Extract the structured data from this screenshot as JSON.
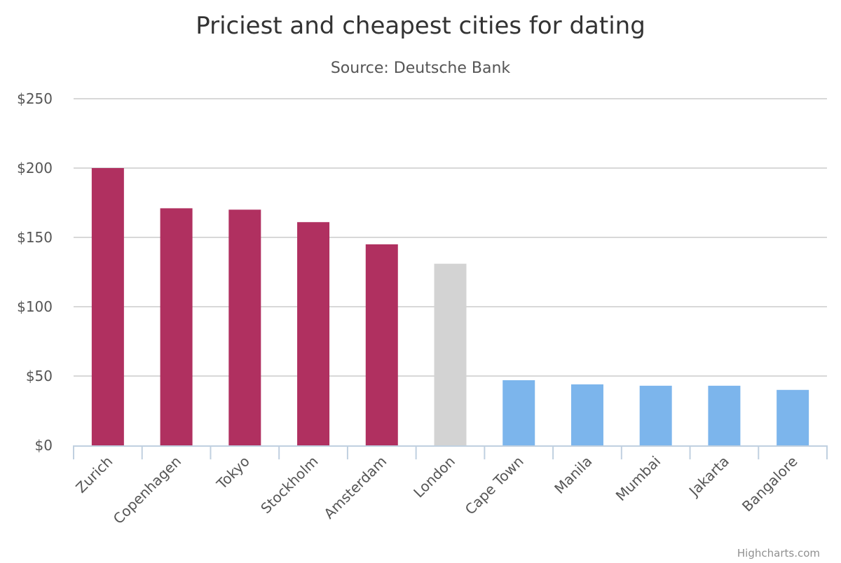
{
  "chart_data": {
    "type": "bar",
    "title": "Priciest and cheapest cities for dating",
    "subtitle": "Source: Deutsche Bank",
    "xlabel": "",
    "ylabel": "",
    "categories": [
      "Zurich",
      "Copenhagen",
      "Tokyo",
      "Stockholm",
      "Amsterdam",
      "London",
      "Cape Town",
      "Manila",
      "Mumbai",
      "Jakarta",
      "Bangalore"
    ],
    "values": [
      200,
      171,
      170,
      161,
      145,
      131,
      47,
      44,
      43,
      43,
      40
    ],
    "colors": [
      "#b03060",
      "#b03060",
      "#b03060",
      "#b03060",
      "#b03060",
      "#d3d3d3",
      "#7cb5ec",
      "#7cb5ec",
      "#7cb5ec",
      "#7cb5ec",
      "#7cb5ec"
    ],
    "ylim": [
      0,
      250
    ],
    "yticks": [
      0,
      50,
      100,
      150,
      200,
      250
    ],
    "ytick_labels": [
      "$0",
      "$50",
      "$100",
      "$150",
      "$200",
      "$250"
    ],
    "grid": true,
    "legend": "none"
  },
  "credits": "Highcharts.com"
}
